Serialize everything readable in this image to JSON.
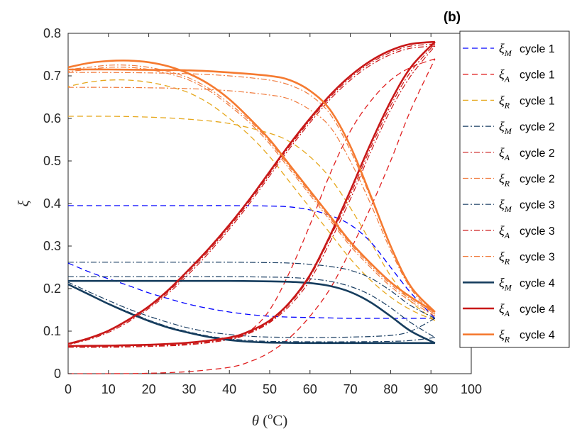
{
  "chart_data": {
    "type": "line",
    "panel_label": "(b)",
    "xlabel": "θ (°C)",
    "xlabel_parts": {
      "symbol": "θ",
      "open": " (",
      "superscript": "o",
      "unit": "C)"
    },
    "ylabel": "ξ",
    "xlim": [
      0,
      100
    ],
    "ylim": [
      0,
      0.8
    ],
    "xticks": [
      0,
      10,
      20,
      30,
      40,
      50,
      60,
      70,
      80,
      90,
      100
    ],
    "yticks": [
      0,
      0.1,
      0.2,
      0.3,
      0.4,
      0.5,
      0.6,
      0.7,
      0.8
    ],
    "ytick_labels": [
      "0",
      "0.1",
      "0.2",
      "0.3",
      "0.4",
      "0.5",
      "0.6",
      "0.7",
      "0.8"
    ],
    "grid": false,
    "legend_position": "right-outside",
    "colors": {
      "M": "#0000ff",
      "A": "#e02020",
      "R": "#e6a81e",
      "M2": "#1a3e63",
      "A2": "#cc1818",
      "R2": "#f07a3c",
      "M4": "#163d5e",
      "A4": "#c81818",
      "R4": "#f57a30",
      "axis": "#262626"
    },
    "series": [
      {
        "name": "ξM cycle 1",
        "symbol": "ξ",
        "sub": "M",
        "label": "cycle 1",
        "color": "#0000ff",
        "style": "dashed",
        "width": 1.3,
        "x_heat": [
          0,
          10,
          20,
          30,
          40,
          50,
          55,
          60,
          65,
          70,
          75,
          80,
          85,
          91
        ],
        "y_heat": [
          0.395,
          0.395,
          0.395,
          0.395,
          0.395,
          0.394,
          0.392,
          0.385,
          0.372,
          0.35,
          0.31,
          0.25,
          0.19,
          0.13
        ],
        "x_cool": [
          91,
          85,
          80,
          75,
          70,
          65,
          60,
          55,
          50,
          45,
          40,
          35,
          30,
          25,
          20,
          15,
          10,
          5,
          0
        ],
        "y_cool": [
          0.13,
          0.13,
          0.13,
          0.13,
          0.13,
          0.131,
          0.132,
          0.133,
          0.135,
          0.139,
          0.145,
          0.153,
          0.163,
          0.176,
          0.19,
          0.207,
          0.223,
          0.24,
          0.26
        ]
      },
      {
        "name": "ξA cycle 1",
        "symbol": "ξ",
        "sub": "A",
        "label": "cycle 1",
        "color": "#e02020",
        "style": "dashed",
        "width": 1.3,
        "x_heat": [
          0,
          10,
          20,
          30,
          40,
          45,
          50,
          55,
          60,
          65,
          70,
          75,
          80,
          85,
          91
        ],
        "y_heat": [
          0,
          0,
          0.001,
          0.005,
          0.015,
          0.028,
          0.05,
          0.085,
          0.135,
          0.2,
          0.29,
          0.39,
          0.5,
          0.62,
          0.74
        ],
        "x_cool": [
          91,
          85,
          80,
          75,
          70,
          65,
          60,
          55,
          50,
          45,
          40
        ],
        "y_cool": [
          0.74,
          0.72,
          0.69,
          0.64,
          0.57,
          0.47,
          0.35,
          0.24,
          0.15,
          0.1,
          0.08
        ]
      },
      {
        "name": "ξR cycle 1",
        "symbol": "ξ",
        "sub": "R",
        "label": "cycle 1",
        "color": "#e6a81e",
        "style": "dashed",
        "width": 1.3,
        "x_heat": [
          0,
          10,
          20,
          30,
          40,
          50,
          55,
          60,
          65,
          70,
          75,
          80,
          85,
          91
        ],
        "y_heat": [
          0.605,
          0.605,
          0.603,
          0.598,
          0.588,
          0.565,
          0.545,
          0.51,
          0.46,
          0.39,
          0.31,
          0.23,
          0.17,
          0.125
        ],
        "x_cool": [
          91,
          85,
          80,
          75,
          70,
          65,
          60,
          55,
          50,
          45,
          40,
          35,
          30,
          25,
          20,
          15,
          10,
          5,
          0
        ],
        "y_cool": [
          0.125,
          0.15,
          0.18,
          0.22,
          0.27,
          0.33,
          0.39,
          0.45,
          0.51,
          0.56,
          0.6,
          0.635,
          0.66,
          0.675,
          0.685,
          0.69,
          0.69,
          0.685,
          0.675
        ]
      },
      {
        "name": "ξM cycle 2",
        "symbol": "ξ",
        "sub": "M",
        "label": "cycle 2",
        "color": "#1a3e63",
        "style": "dashdot",
        "width": 1.2,
        "x_heat": [
          0,
          10,
          20,
          30,
          40,
          50,
          55,
          60,
          65,
          70,
          75,
          80,
          85,
          91
        ],
        "y_heat": [
          0.262,
          0.262,
          0.262,
          0.262,
          0.262,
          0.261,
          0.26,
          0.257,
          0.252,
          0.243,
          0.225,
          0.195,
          0.16,
          0.13
        ],
        "x_cool": [
          91,
          85,
          80,
          70,
          60,
          50,
          45,
          40,
          35,
          30,
          25,
          20,
          15,
          10,
          5,
          0
        ],
        "y_cool": [
          0.13,
          0.1,
          0.09,
          0.086,
          0.085,
          0.086,
          0.088,
          0.092,
          0.098,
          0.107,
          0.12,
          0.135,
          0.152,
          0.172,
          0.193,
          0.215
        ]
      },
      {
        "name": "ξA cycle 2",
        "symbol": "ξ",
        "sub": "A",
        "label": "cycle 2",
        "color": "#cc1818",
        "style": "dashdot",
        "width": 1.2,
        "x_heat": [
          0,
          10,
          20,
          30,
          40,
          45,
          50,
          55,
          60,
          65,
          70,
          75,
          80,
          85,
          91
        ],
        "y_heat": [
          0.062,
          0.062,
          0.064,
          0.068,
          0.08,
          0.095,
          0.12,
          0.16,
          0.22,
          0.31,
          0.41,
          0.52,
          0.62,
          0.7,
          0.77
        ],
        "x_cool": [
          91,
          85,
          80,
          75,
          70,
          65,
          60,
          55,
          50,
          45,
          40,
          35,
          30,
          25,
          20,
          15,
          10,
          5,
          0
        ],
        "y_cool": [
          0.77,
          0.765,
          0.75,
          0.725,
          0.69,
          0.645,
          0.59,
          0.53,
          0.465,
          0.4,
          0.34,
          0.285,
          0.235,
          0.19,
          0.153,
          0.122,
          0.097,
          0.08,
          0.068
        ]
      },
      {
        "name": "ξR cycle 2",
        "symbol": "ξ",
        "sub": "R",
        "label": "cycle 2",
        "color": "#f07a3c",
        "style": "dashdot",
        "width": 1.2,
        "x_heat": [
          0,
          10,
          20,
          30,
          40,
          50,
          55,
          60,
          65,
          70,
          75,
          80,
          85,
          91
        ],
        "y_heat": [
          0.673,
          0.673,
          0.672,
          0.67,
          0.665,
          0.655,
          0.645,
          0.62,
          0.58,
          0.5,
          0.4,
          0.29,
          0.2,
          0.135
        ],
        "x_cool": [
          91,
          85,
          80,
          75,
          70,
          65,
          60,
          55,
          50,
          45,
          40,
          35,
          30,
          25,
          20,
          15,
          10,
          5,
          0
        ],
        "y_cool": [
          0.135,
          0.17,
          0.205,
          0.25,
          0.3,
          0.36,
          0.42,
          0.48,
          0.54,
          0.59,
          0.63,
          0.665,
          0.69,
          0.705,
          0.715,
          0.72,
          0.72,
          0.715,
          0.71
        ]
      },
      {
        "name": "ξM cycle 3",
        "symbol": "ξ",
        "sub": "M",
        "label": "cycle 3",
        "color": "#1a3e63",
        "style": "dashdot",
        "width": 1.2,
        "x_heat": [
          0,
          10,
          20,
          30,
          40,
          50,
          55,
          60,
          65,
          70,
          75,
          80,
          85,
          91
        ],
        "y_heat": [
          0.228,
          0.228,
          0.228,
          0.228,
          0.228,
          0.227,
          0.226,
          0.223,
          0.217,
          0.205,
          0.185,
          0.155,
          0.12,
          0.085
        ],
        "x_cool": [
          91,
          85,
          80,
          70,
          60,
          50,
          45,
          40,
          35,
          30,
          25,
          20,
          15,
          10,
          5,
          0
        ],
        "y_cool": [
          0.085,
          0.078,
          0.076,
          0.075,
          0.075,
          0.076,
          0.078,
          0.082,
          0.088,
          0.098,
          0.11,
          0.126,
          0.145,
          0.165,
          0.188,
          0.21
        ]
      },
      {
        "name": "ξA cycle 3",
        "symbol": "ξ",
        "sub": "A",
        "label": "cycle 3",
        "color": "#cc1818",
        "style": "dashdot",
        "width": 1.2,
        "x_heat": [
          0,
          10,
          20,
          30,
          40,
          45,
          50,
          55,
          60,
          65,
          70,
          75,
          80,
          85,
          91
        ],
        "y_heat": [
          0.064,
          0.064,
          0.066,
          0.07,
          0.082,
          0.097,
          0.122,
          0.165,
          0.228,
          0.32,
          0.42,
          0.53,
          0.63,
          0.71,
          0.775
        ],
        "x_cool": [
          91,
          85,
          80,
          75,
          70,
          65,
          60,
          55,
          50,
          45,
          40,
          35,
          30,
          25,
          20,
          15,
          10,
          5,
          0
        ],
        "y_cool": [
          0.775,
          0.77,
          0.755,
          0.73,
          0.695,
          0.65,
          0.595,
          0.535,
          0.47,
          0.405,
          0.345,
          0.29,
          0.24,
          0.194,
          0.156,
          0.125,
          0.1,
          0.082,
          0.07
        ]
      },
      {
        "name": "ξR cycle 3",
        "symbol": "ξ",
        "sub": "R",
        "label": "cycle 3",
        "color": "#f07a3c",
        "style": "dashdot",
        "width": 1.2,
        "x_heat": [
          0,
          10,
          20,
          30,
          40,
          50,
          55,
          60,
          65,
          70,
          75,
          80,
          85,
          91
        ],
        "y_heat": [
          0.708,
          0.708,
          0.707,
          0.705,
          0.7,
          0.69,
          0.678,
          0.655,
          0.61,
          0.525,
          0.415,
          0.3,
          0.205,
          0.14
        ],
        "x_cool": [
          91,
          85,
          80,
          75,
          70,
          65,
          60,
          55,
          50,
          45,
          40,
          35,
          30,
          25,
          20,
          15,
          10,
          5,
          0
        ],
        "y_cool": [
          0.14,
          0.175,
          0.21,
          0.255,
          0.305,
          0.365,
          0.425,
          0.485,
          0.545,
          0.595,
          0.635,
          0.67,
          0.695,
          0.71,
          0.72,
          0.725,
          0.725,
          0.72,
          0.715
        ]
      },
      {
        "name": "ξM cycle 4",
        "symbol": "ξ",
        "sub": "M",
        "label": "cycle 4",
        "color": "#163d5e",
        "style": "solid",
        "width": 2.6,
        "x_heat": [
          0,
          10,
          20,
          30,
          40,
          50,
          55,
          60,
          65,
          70,
          75,
          80,
          85,
          91
        ],
        "y_heat": [
          0.218,
          0.218,
          0.218,
          0.218,
          0.218,
          0.217,
          0.216,
          0.213,
          0.206,
          0.192,
          0.168,
          0.135,
          0.1,
          0.072
        ],
        "x_cool": [
          91,
          85,
          80,
          70,
          60,
          50,
          45,
          40,
          35,
          30,
          25,
          20,
          15,
          10,
          5,
          0
        ],
        "y_cool": [
          0.072,
          0.072,
          0.072,
          0.072,
          0.072,
          0.073,
          0.075,
          0.079,
          0.086,
          0.096,
          0.108,
          0.124,
          0.143,
          0.164,
          0.187,
          0.21
        ]
      },
      {
        "name": "ξA cycle 4",
        "symbol": "ξ",
        "sub": "A",
        "label": "cycle 4",
        "color": "#c81818",
        "style": "solid",
        "width": 2.6,
        "x_heat": [
          0,
          10,
          20,
          30,
          40,
          45,
          50,
          55,
          60,
          65,
          70,
          75,
          80,
          85,
          91
        ],
        "y_heat": [
          0.065,
          0.066,
          0.068,
          0.073,
          0.085,
          0.1,
          0.125,
          0.168,
          0.232,
          0.325,
          0.43,
          0.54,
          0.64,
          0.72,
          0.78
        ],
        "x_cool": [
          91,
          85,
          80,
          75,
          70,
          65,
          60,
          55,
          50,
          45,
          40,
          35,
          30,
          25,
          20,
          15,
          10,
          5,
          0
        ],
        "y_cool": [
          0.78,
          0.775,
          0.76,
          0.735,
          0.7,
          0.655,
          0.6,
          0.54,
          0.475,
          0.41,
          0.35,
          0.295,
          0.245,
          0.198,
          0.158,
          0.127,
          0.101,
          0.083,
          0.07
        ]
      },
      {
        "name": "ξR cycle 4",
        "symbol": "ξ",
        "sub": "R",
        "label": "cycle 4",
        "color": "#f57a30",
        "style": "solid",
        "width": 2.6,
        "x_heat": [
          0,
          10,
          20,
          30,
          40,
          50,
          55,
          60,
          65,
          70,
          75,
          80,
          85,
          91
        ],
        "y_heat": [
          0.715,
          0.715,
          0.714,
          0.713,
          0.708,
          0.7,
          0.69,
          0.665,
          0.62,
          0.535,
          0.42,
          0.3,
          0.205,
          0.145
        ],
        "x_cool": [
          91,
          85,
          80,
          75,
          70,
          65,
          60,
          55,
          50,
          45,
          40,
          35,
          30,
          25,
          20,
          15,
          10,
          5,
          0
        ],
        "y_cool": [
          0.145,
          0.18,
          0.215,
          0.26,
          0.31,
          0.37,
          0.43,
          0.49,
          0.55,
          0.6,
          0.645,
          0.68,
          0.705,
          0.722,
          0.732,
          0.736,
          0.735,
          0.73,
          0.72
        ]
      }
    ]
  }
}
